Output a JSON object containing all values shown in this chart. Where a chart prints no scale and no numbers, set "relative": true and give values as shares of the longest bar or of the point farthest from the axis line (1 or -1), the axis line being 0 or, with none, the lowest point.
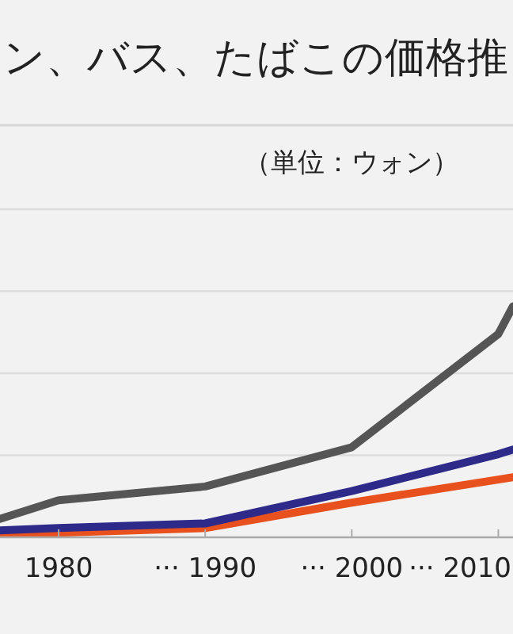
{
  "chart_data": {
    "type": "line",
    "title": "ン、バス、たばこの価格推",
    "subtitle": "（単位：ウォン）",
    "relative": true,
    "line_style": "solid",
    "ref_lines": [
      {
        "axis": "y",
        "value": 0.355,
        "color": "#dcdcdc"
      },
      {
        "axis": "y",
        "value": 0.71,
        "color": "#dcdcdc"
      },
      {
        "axis": "y",
        "value": 1.065,
        "color": "#dcdcdc"
      },
      {
        "axis": "y",
        "value": 1.42,
        "color": "#dcdcdc"
      }
    ],
    "x": [
      1976,
      1980,
      1990,
      2000,
      2010,
      2011
    ],
    "xlim": [
      1976,
      2011
    ],
    "xticks": [
      {
        "value": 1980,
        "label": "1980"
      },
      {
        "value": 1990,
        "label": "··· 1990"
      },
      {
        "value": 2000,
        "label": "··· 2000"
      },
      {
        "value": 2010,
        "label": "··· 2010"
      }
    ],
    "series": [
      {
        "color": "#555555",
        "values": [
          0.08,
          0.16,
          0.22,
          0.39,
          0.88,
          1.0
        ]
      },
      {
        "color": "#2e2a8a",
        "values": [
          0.03,
          0.04,
          0.06,
          0.2,
          0.36,
          0.38
        ]
      },
      {
        "color": "#e8501e",
        "values": [
          0.014,
          0.02,
          0.04,
          0.15,
          0.25,
          0.26
        ]
      }
    ]
  }
}
